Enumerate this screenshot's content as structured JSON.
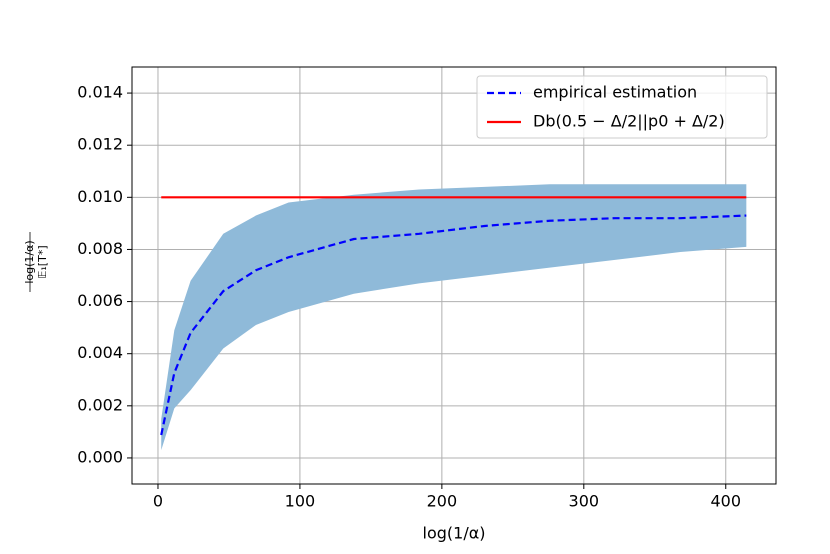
{
  "chart_data": {
    "type": "line",
    "xlabel": "log(1/α)",
    "ylabel": {
      "numerator": "log(1/α)",
      "denominator": "𝔼₁[T*]"
    },
    "xlim": [
      -18.3,
      435.4
    ],
    "ylim": [
      -0.001,
      0.015
    ],
    "xticks": [
      0,
      100,
      200,
      300,
      400
    ],
    "yticks": [
      {
        "value": 0,
        "label": "0.000"
      },
      {
        "value": 0.002,
        "label": "0.002"
      },
      {
        "value": 0.004,
        "label": "0.004"
      },
      {
        "value": 0.006,
        "label": "0.006"
      },
      {
        "value": 0.008,
        "label": "0.008"
      },
      {
        "value": 0.01,
        "label": "0.010"
      },
      {
        "value": 0.012,
        "label": "0.012"
      },
      {
        "value": 0.014,
        "label": "0.014"
      }
    ],
    "grid": true,
    "legend": "upper right",
    "band": {
      "color": "#8fbad9",
      "x": [
        2.3,
        11.5,
        23,
        46,
        69,
        92,
        138,
        184,
        230,
        276,
        322,
        368,
        414.5
      ],
      "lower": [
        0.0003,
        0.0019,
        0.0026,
        0.0042,
        0.0051,
        0.0056,
        0.0063,
        0.0067,
        0.007,
        0.0073,
        0.0076,
        0.0079,
        0.0081
      ],
      "upper": [
        0.0015,
        0.0049,
        0.0068,
        0.0086,
        0.0093,
        0.0098,
        0.0101,
        0.0103,
        0.0104,
        0.0105,
        0.0105,
        0.0105,
        0.0105
      ]
    },
    "series": [
      {
        "name": "empirical estimation",
        "color": "#0000ff",
        "dashed": true,
        "x": [
          2.3,
          11.5,
          23,
          46,
          69,
          92,
          138,
          184,
          230,
          276,
          322,
          368,
          414.5
        ],
        "values": [
          0.00088,
          0.00326,
          0.0048,
          0.0064,
          0.0072,
          0.0077,
          0.0084,
          0.0086,
          0.0089,
          0.0091,
          0.0092,
          0.0092,
          0.0093
        ]
      },
      {
        "name": "Db(0.5 − Δ/2||p0 + Δ/2)",
        "color": "#ff0000",
        "dashed": false,
        "x": [
          2.3,
          414.5
        ],
        "values": [
          0.01,
          0.01
        ]
      }
    ]
  }
}
